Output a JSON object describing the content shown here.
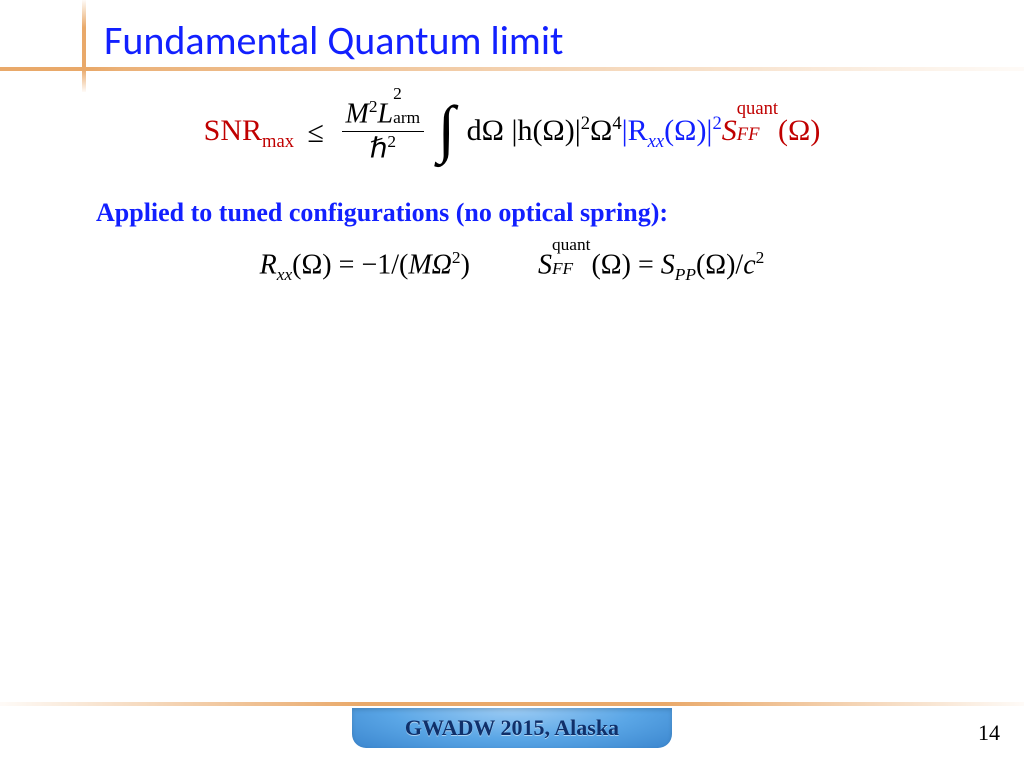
{
  "title": "Fundamental Quantum limit",
  "colors": {
    "title": "#1220ff",
    "rule": "#e9a96a",
    "snr": "#c00000",
    "rxx": "#1220ff",
    "sff": "#c00000",
    "subtitle": "#1220ff",
    "text": "#000000",
    "footer_bg_top": "#9ecdf5",
    "footer_bg_bottom": "#3c87cf",
    "footer_text": "#10306a"
  },
  "fonts": {
    "title_family": "Calibri",
    "title_size_pt": 30,
    "math_family": "Times New Roman",
    "math_size_pt": 22,
    "subtitle_size_pt": 20,
    "footer_size_pt": 17,
    "pagenum_size_pt": 17
  },
  "main_equation": {
    "lhs_label": "SNR",
    "lhs_sub": "max",
    "relation": "≤",
    "fraction": {
      "num_parts": [
        "M",
        "2",
        "L",
        "2",
        "arm"
      ],
      "num_display_M": "M",
      "num_display_M_sup": "2",
      "num_display_L": "L",
      "num_display_L_sup": "2",
      "num_display_L_sub": "arm",
      "den_display": "ℏ",
      "den_sup": "2"
    },
    "integral": "∫",
    "diff": "dΩ",
    "h_term": {
      "base": "|h(Ω)|",
      "sup": "2"
    },
    "omega_term": {
      "base": "Ω",
      "sup": "4"
    },
    "rxx_term": {
      "base": "|R",
      "sub": "xx",
      "arg": "(Ω)|",
      "sup": "2"
    },
    "sff_term": {
      "base": "S",
      "sup": "quant",
      "sub": "FF",
      "arg": "(Ω)"
    }
  },
  "subtitle": "Applied to tuned configurations (no optical spring):",
  "eq2_left": {
    "lhs_base": "R",
    "lhs_sub": "xx",
    "lhs_arg": "(Ω)",
    "eq": " = ",
    "rhs": "−1/(MΩ",
    "rhs_sup": "2",
    "rhs_close": ")"
  },
  "eq2_right": {
    "lhs_base": "S",
    "lhs_sup": "quant",
    "lhs_sub": "FF",
    "lhs_arg": "(Ω)",
    "eq": " = ",
    "rhs_base": "S",
    "rhs_sub": "PP",
    "rhs_arg": "(Ω)/c",
    "rhs_sup": "2"
  },
  "footer": "GWADW 2015, Alaska",
  "page_number": "14"
}
